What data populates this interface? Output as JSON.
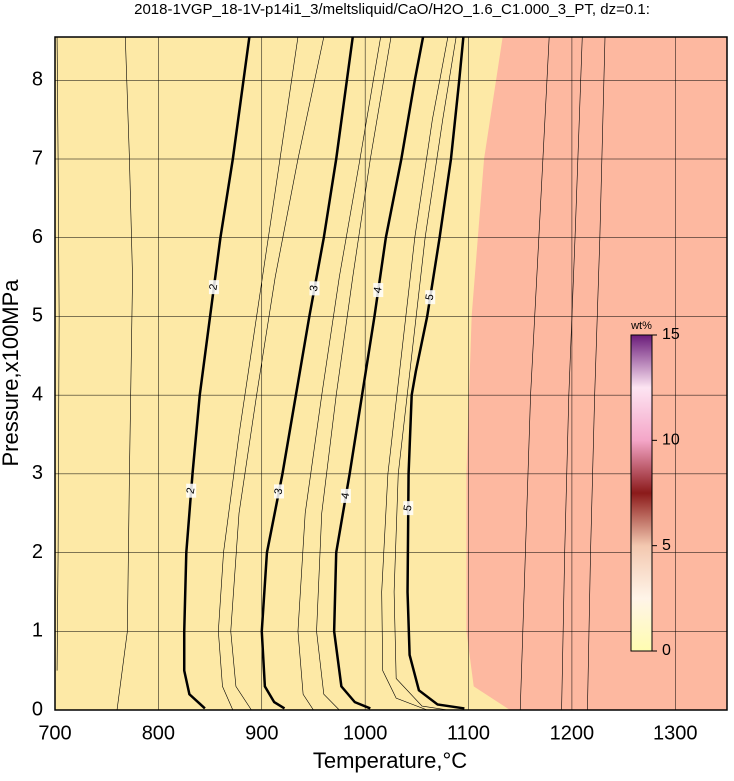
{
  "chart_data": {
    "type": "contour",
    "title": "2018-1VGP_18-1V-p14i1_3/meltsliquid/CaO/H2O_1.6_C1.000_3_PT, dz=0.1:",
    "xlabel": "Temperature,°C",
    "ylabel": "Pressure,x100MPa",
    "xlim": [
      700,
      1350
    ],
    "ylim": [
      0,
      8.55
    ],
    "xticks": [
      700,
      800,
      900,
      1000,
      1100,
      1200,
      1300
    ],
    "yticks": [
      0,
      1,
      2,
      3,
      4,
      5,
      6,
      7,
      8
    ],
    "grid": true,
    "background": "#fde9a6",
    "regions": [
      {
        "color": "#fdb8a0",
        "x": [
          1133,
          1115,
          1103,
          1098,
          1098,
          1105,
          1140,
          1350,
          1350
        ],
        "y": [
          8.55,
          7,
          5,
          3,
          1,
          0.3,
          0,
          0,
          8.55
        ]
      }
    ],
    "contours": [
      {
        "level": 2,
        "x": [
          845,
          840,
          830,
          825,
          825,
          827,
          833,
          840,
          850,
          860,
          872,
          888
        ],
        "y": [
          0.02,
          0.08,
          0.2,
          0.5,
          1,
          2,
          3,
          4,
          5,
          6,
          7,
          8.55
        ]
      },
      {
        "level": 3,
        "x": [
          922,
          912,
          903,
          900,
          905,
          920,
          933,
          946,
          960,
          972,
          988
        ],
        "y": [
          0.02,
          0.1,
          0.3,
          1,
          2,
          3,
          4,
          5,
          6,
          7,
          8.55
        ]
      },
      {
        "level": 4,
        "x": [
          1005,
          990,
          977,
          970,
          972,
          985,
          997,
          1009,
          1020,
          1035,
          1048,
          1056
        ],
        "y": [
          0.02,
          0.1,
          0.3,
          1,
          2,
          3,
          4,
          5,
          6,
          7,
          8,
          8.55
        ]
      },
      {
        "level": 5,
        "x": [
          1096,
          1070,
          1052,
          1043,
          1041,
          1042,
          1045,
          1049,
          1060,
          1072,
          1083,
          1091,
          1095
        ],
        "y": [
          0.02,
          0.07,
          0.25,
          0.7,
          1.5,
          3,
          4,
          4.3,
          5,
          6,
          7,
          8,
          8.55
        ]
      }
    ],
    "thin_contours": [
      {
        "x": [
          702,
          703,
          704,
          703,
          702
        ],
        "y": [
          0.5,
          2,
          5,
          7,
          8.55
        ]
      },
      {
        "x": [
          760,
          770,
          772,
          775,
          772,
          768
        ],
        "y": [
          0,
          1,
          3,
          5.5,
          7,
          8.55
        ]
      },
      {
        "x": [
          872,
          862,
          858,
          863,
          878,
          895,
          912,
          935
        ],
        "y": [
          0,
          0.3,
          1,
          2,
          3.5,
          5,
          6.5,
          8.55
        ]
      },
      {
        "x": [
          890,
          875,
          870,
          878,
          895,
          913,
          935,
          960
        ],
        "y": [
          0,
          0.3,
          1,
          2.5,
          4,
          5.5,
          7,
          8.55
        ]
      },
      {
        "x": [
          950,
          940,
          935,
          942,
          958,
          975,
          995,
          1015
        ],
        "y": [
          0,
          0.2,
          1,
          2.5,
          4,
          5.5,
          7,
          8.55
        ]
      },
      {
        "x": [
          975,
          960,
          953,
          958,
          972,
          988,
          1005,
          1025
        ],
        "y": [
          0,
          0.2,
          1,
          2.5,
          4,
          5.5,
          7,
          8.55
        ]
      },
      {
        "x": [
          1060,
          1030,
          1017,
          1016,
          1022,
          1035,
          1048,
          1065,
          1080
        ],
        "y": [
          0,
          0.15,
          0.5,
          1.5,
          3,
          4.5,
          6,
          7.5,
          8.55
        ]
      },
      {
        "x": [
          1080,
          1055,
          1030,
          1028,
          1032,
          1045,
          1058,
          1075,
          1088
        ],
        "y": [
          0,
          0.05,
          0.4,
          1.5,
          3,
          4.5,
          6,
          7.5,
          8.55
        ]
      },
      {
        "x": [
          1150,
          1155,
          1160,
          1168,
          1178
        ],
        "y": [
          0,
          2,
          4,
          6,
          8.55
        ]
      },
      {
        "x": [
          1190,
          1193,
          1197,
          1203,
          1210
        ],
        "y": [
          0,
          2,
          4,
          6,
          8.55
        ]
      },
      {
        "x": [
          1215,
          1218,
          1222,
          1227,
          1232
        ],
        "y": [
          0,
          2,
          4,
          6,
          8.55
        ]
      }
    ],
    "colorbar": {
      "label": "wt%",
      "lim": [
        0,
        15
      ],
      "ticks": [
        0,
        5,
        10,
        15
      ],
      "colors": [
        "#fffcb0",
        "#fff4e8",
        "#f3c8b0",
        "#8b1a1a",
        "#f4a6c8",
        "#fde4f2",
        "#6a1b7a"
      ]
    }
  }
}
